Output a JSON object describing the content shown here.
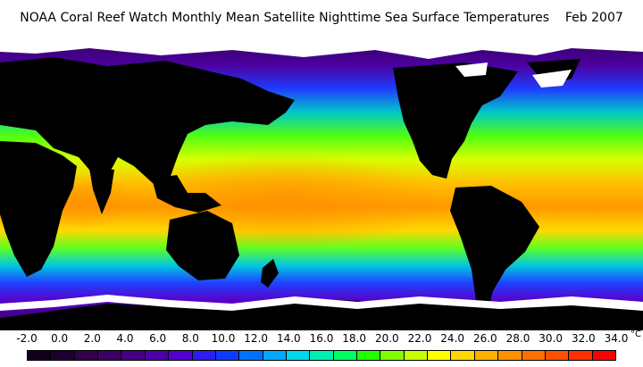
{
  "title": "NOAA Coral Reef Watch Monthly Mean Satellite Nighttime Sea Surface Temperatures    Feb 2007",
  "colors": {
    "land": "#000000",
    "ice": "#ffffff"
  },
  "legend": {
    "ticks": [
      "-2.0",
      "0.0",
      "2.0",
      "4.0",
      "6.0",
      "8.0",
      "10.0",
      "12.0",
      "14.0",
      "16.0",
      "18.0",
      "20.0",
      "22.0",
      "24.0",
      "26.0",
      "28.0",
      "30.0",
      "32.0",
      "34.0"
    ],
    "unit": "°C",
    "colors": [
      "#12001a",
      "#1e0030",
      "#300048",
      "#3c0064",
      "#440082",
      "#4c00a8",
      "#5000d0",
      "#2a1ef0",
      "#0a3cff",
      "#0070ff",
      "#00a8ff",
      "#00d8f0",
      "#00f0b0",
      "#00ff60",
      "#20ff00",
      "#80ff00",
      "#c8ff00",
      "#ffff00",
      "#ffd800",
      "#ffb000",
      "#ff9000",
      "#ff7000",
      "#ff5000",
      "#ff3000",
      "#ff0000"
    ]
  }
}
